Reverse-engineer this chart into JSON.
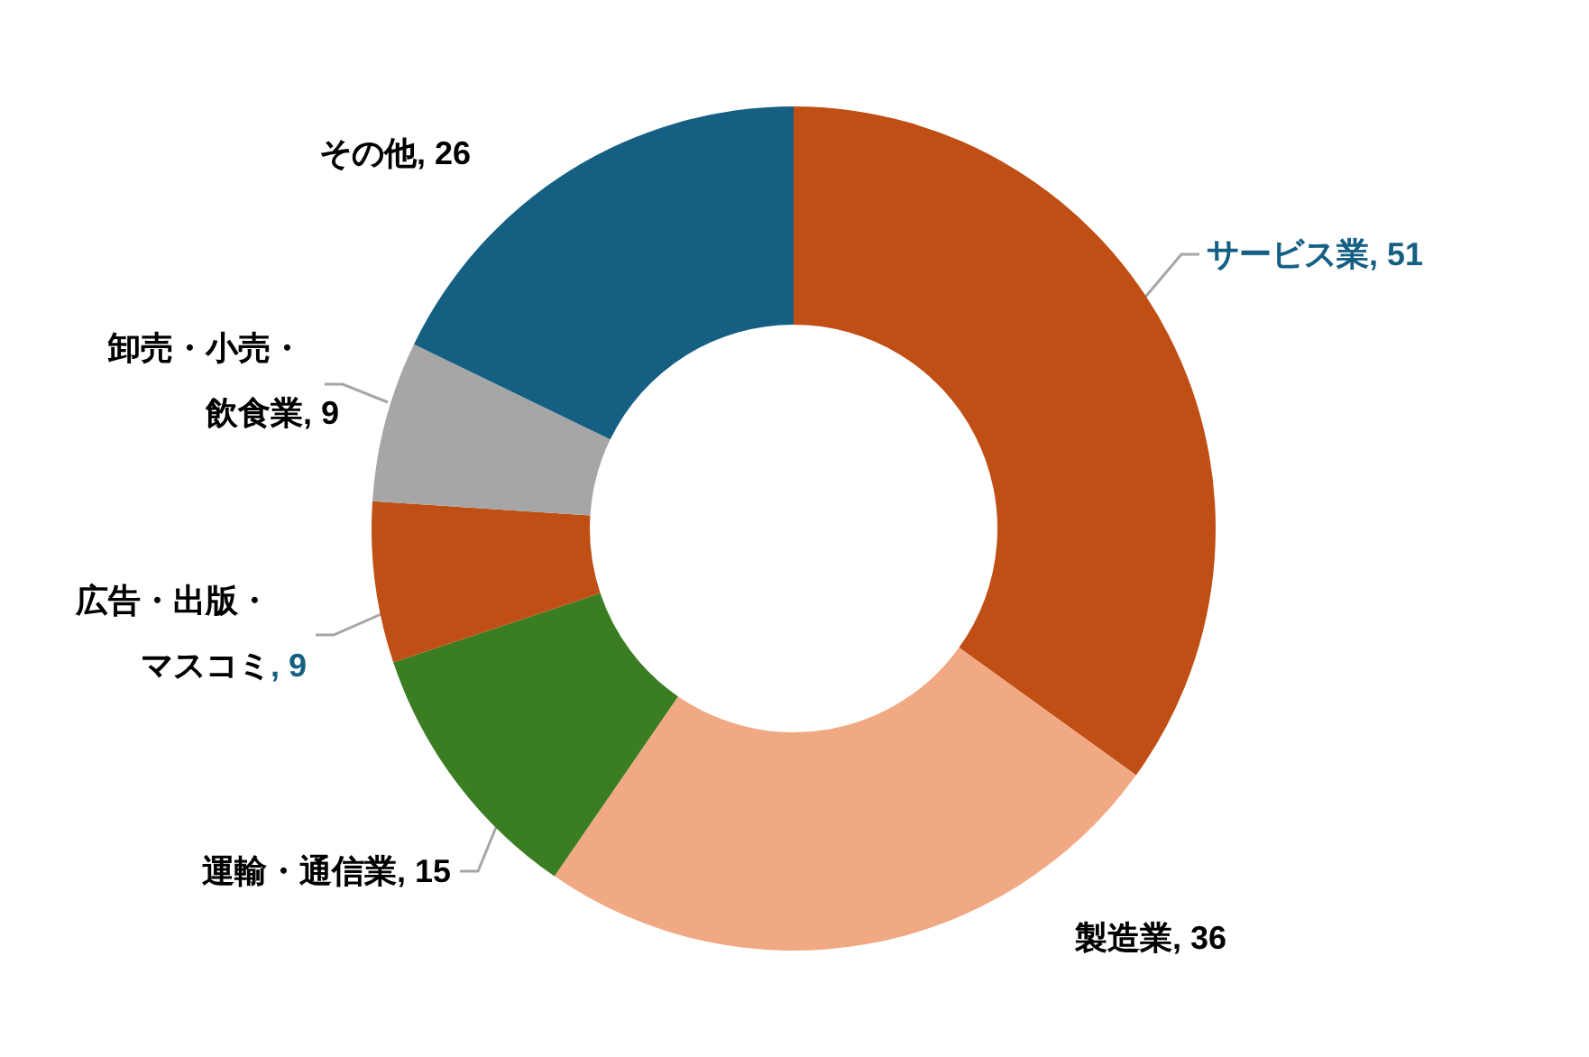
{
  "chart_data": {
    "type": "donut",
    "categories": [
      "サービス業",
      "製造業",
      "運輸・通信業",
      "広告・出版・マスコミ",
      "卸売・小売・飲食業",
      "その他"
    ],
    "values": [
      51,
      36,
      15,
      9,
      9,
      26
    ],
    "colors": [
      "#c04f15",
      "#f1a983",
      "#3a7d22",
      "#c04f15",
      "#a6a6a6",
      "#156082"
    ],
    "value_labels": [
      ", 51",
      ", 36",
      ", 15",
      ", 9",
      ", 9",
      ", 26"
    ]
  }
}
